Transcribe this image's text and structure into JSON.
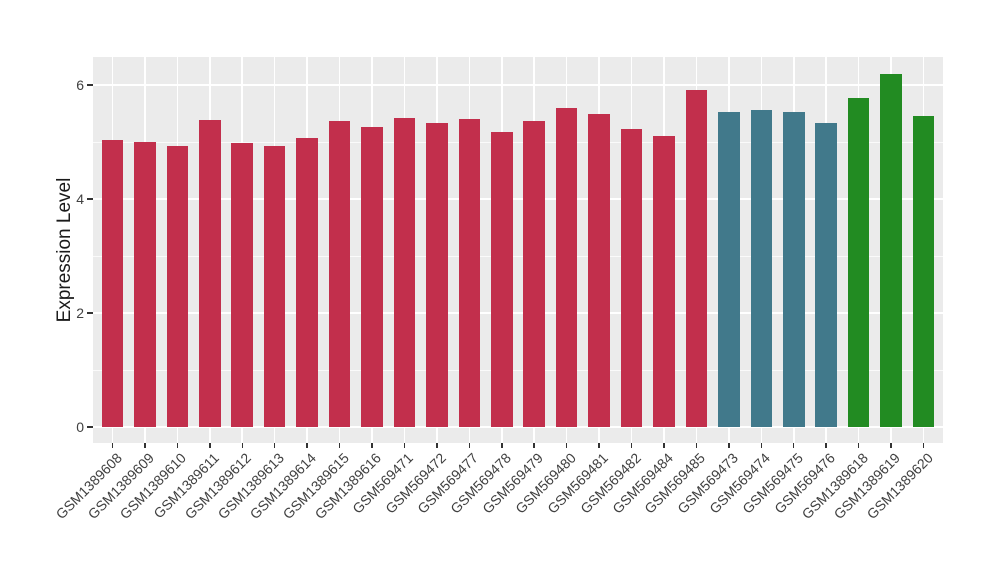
{
  "figure": {
    "background": "#FFFFFF",
    "panel_background": "#EBEBEB",
    "grid_color": "#FFFFFF",
    "axis_text_color": "#404040",
    "axis_title_color": "#1A1A1A",
    "tick_color": "#333333"
  },
  "chart_data": {
    "type": "bar",
    "title": "",
    "xlabel": "",
    "ylabel": "Expression Level",
    "ylim": [
      0,
      6.5
    ],
    "grid": true,
    "legend": false,
    "yticks": [
      {
        "label": "0",
        "value": 0
      },
      {
        "label": "2",
        "value": 2
      },
      {
        "label": "4",
        "value": 4
      },
      {
        "label": "6",
        "value": 6
      }
    ],
    "yticks_minor": [
      1,
      3,
      5
    ],
    "series_colors": {
      "red": "#C22F4C",
      "teal": "#41798B",
      "green": "#228B22"
    },
    "categories": [
      "GSM1389608",
      "GSM1389609",
      "GSM1389610",
      "GSM1389611",
      "GSM1389612",
      "GSM1389613",
      "GSM1389614",
      "GSM1389615",
      "GSM1389616",
      "GSM569471",
      "GSM569472",
      "GSM569477",
      "GSM569478",
      "GSM569479",
      "GSM569480",
      "GSM569481",
      "GSM569482",
      "GSM569484",
      "GSM569485",
      "GSM569473",
      "GSM569474",
      "GSM569475",
      "GSM569476",
      "GSM1389618",
      "GSM1389619",
      "GSM1389620"
    ],
    "bars": [
      {
        "label": "GSM1389608",
        "value": 5.04,
        "group": "red"
      },
      {
        "label": "GSM1389609",
        "value": 5.0,
        "group": "red"
      },
      {
        "label": "GSM1389610",
        "value": 4.93,
        "group": "red"
      },
      {
        "label": "GSM1389611",
        "value": 5.39,
        "group": "red"
      },
      {
        "label": "GSM1389612",
        "value": 4.99,
        "group": "red"
      },
      {
        "label": "GSM1389613",
        "value": 4.93,
        "group": "red"
      },
      {
        "label": "GSM1389614",
        "value": 5.07,
        "group": "red"
      },
      {
        "label": "GSM1389615",
        "value": 5.36,
        "group": "red"
      },
      {
        "label": "GSM1389616",
        "value": 5.27,
        "group": "red"
      },
      {
        "label": "GSM569471",
        "value": 5.42,
        "group": "red"
      },
      {
        "label": "GSM569472",
        "value": 5.34,
        "group": "red"
      },
      {
        "label": "GSM569477",
        "value": 5.4,
        "group": "red"
      },
      {
        "label": "GSM569478",
        "value": 5.18,
        "group": "red"
      },
      {
        "label": "GSM569479",
        "value": 5.37,
        "group": "red"
      },
      {
        "label": "GSM569480",
        "value": 5.59,
        "group": "red"
      },
      {
        "label": "GSM569481",
        "value": 5.5,
        "group": "red"
      },
      {
        "label": "GSM569482",
        "value": 5.23,
        "group": "red"
      },
      {
        "label": "GSM569484",
        "value": 5.11,
        "group": "red"
      },
      {
        "label": "GSM569485",
        "value": 5.92,
        "group": "red"
      },
      {
        "label": "GSM569473",
        "value": 5.53,
        "group": "teal"
      },
      {
        "label": "GSM569474",
        "value": 5.56,
        "group": "teal"
      },
      {
        "label": "GSM569475",
        "value": 5.53,
        "group": "teal"
      },
      {
        "label": "GSM569476",
        "value": 5.33,
        "group": "teal"
      },
      {
        "label": "GSM1389618",
        "value": 5.77,
        "group": "green"
      },
      {
        "label": "GSM1389619",
        "value": 6.19,
        "group": "green"
      },
      {
        "label": "GSM1389620",
        "value": 5.46,
        "group": "green"
      }
    ]
  }
}
